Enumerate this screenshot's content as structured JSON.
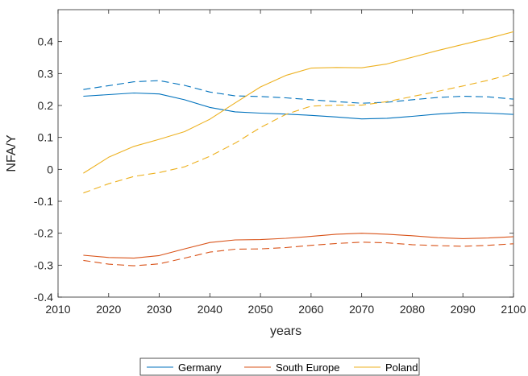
{
  "chart_data": {
    "type": "line",
    "xlabel": "years",
    "ylabel": "NFA/Y",
    "xlim": [
      2010,
      2100
    ],
    "ylim": [
      -0.4,
      0.5
    ],
    "xticks": [
      2010,
      2020,
      2030,
      2040,
      2050,
      2060,
      2070,
      2080,
      2090,
      2100
    ],
    "yticks": [
      -0.4,
      -0.3,
      -0.2,
      -0.1,
      0,
      0.1,
      0.2,
      0.3,
      0.4
    ],
    "ytick_labels": [
      "-0.4",
      "-0.3",
      "-0.2",
      "-0.1",
      "0",
      "0.1",
      "0.2",
      "0.3",
      "0.4"
    ],
    "grid": false,
    "legend_position": "bottom-outside",
    "x": [
      2015,
      2020,
      2025,
      2030,
      2035,
      2040,
      2045,
      2050,
      2055,
      2060,
      2065,
      2070,
      2075,
      2080,
      2085,
      2090,
      2095,
      2100
    ],
    "series": [
      {
        "name": "Germany",
        "style": "solid",
        "color": "#0072BD",
        "values": [
          0.229,
          0.234,
          0.239,
          0.236,
          0.218,
          0.194,
          0.18,
          0.176,
          0.173,
          0.169,
          0.164,
          0.158,
          0.16,
          0.166,
          0.173,
          0.178,
          0.176,
          0.172
        ]
      },
      {
        "name": "",
        "style": "dashed",
        "color": "#0072BD",
        "values": [
          0.25,
          0.262,
          0.274,
          0.278,
          0.263,
          0.242,
          0.23,
          0.228,
          0.224,
          0.218,
          0.212,
          0.207,
          0.21,
          0.218,
          0.225,
          0.229,
          0.227,
          0.22
        ]
      },
      {
        "name": "South Europe",
        "style": "solid",
        "color": "#D95319",
        "values": [
          -0.269,
          -0.276,
          -0.278,
          -0.27,
          -0.249,
          -0.229,
          -0.221,
          -0.22,
          -0.216,
          -0.21,
          -0.203,
          -0.2,
          -0.203,
          -0.208,
          -0.214,
          -0.217,
          -0.215,
          -0.211
        ]
      },
      {
        "name": "",
        "style": "dashed",
        "color": "#D95319",
        "values": [
          -0.285,
          -0.297,
          -0.302,
          -0.296,
          -0.278,
          -0.259,
          -0.25,
          -0.249,
          -0.245,
          -0.238,
          -0.232,
          -0.228,
          -0.23,
          -0.236,
          -0.239,
          -0.241,
          -0.238,
          -0.233
        ]
      },
      {
        "name": "Poland",
        "style": "solid",
        "color": "#EDB120",
        "values": [
          -0.012,
          0.038,
          0.072,
          0.094,
          0.118,
          0.157,
          0.208,
          0.258,
          0.294,
          0.317,
          0.319,
          0.318,
          0.33,
          0.351,
          0.372,
          0.391,
          0.41,
          0.431
        ]
      },
      {
        "name": "",
        "style": "dashed",
        "color": "#EDB120",
        "values": [
          -0.074,
          -0.045,
          -0.022,
          -0.01,
          0.008,
          0.041,
          0.082,
          0.131,
          0.172,
          0.198,
          0.201,
          0.201,
          0.212,
          0.228,
          0.244,
          0.261,
          0.279,
          0.3
        ]
      }
    ]
  }
}
